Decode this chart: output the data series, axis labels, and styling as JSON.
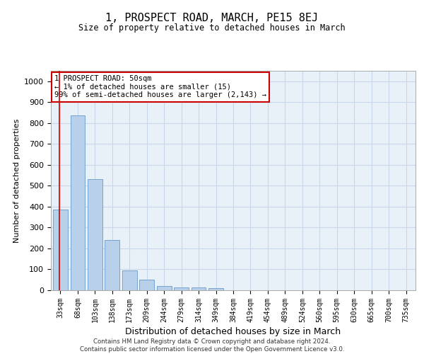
{
  "title": "1, PROSPECT ROAD, MARCH, PE15 8EJ",
  "subtitle": "Size of property relative to detached houses in March",
  "xlabel": "Distribution of detached houses by size in March",
  "ylabel": "Number of detached properties",
  "bar_labels": [
    "33sqm",
    "68sqm",
    "103sqm",
    "138sqm",
    "173sqm",
    "209sqm",
    "244sqm",
    "279sqm",
    "314sqm",
    "349sqm",
    "384sqm",
    "419sqm",
    "454sqm",
    "489sqm",
    "524sqm",
    "560sqm",
    "595sqm",
    "630sqm",
    "665sqm",
    "700sqm",
    "735sqm"
  ],
  "bar_values": [
    385,
    835,
    533,
    242,
    95,
    51,
    22,
    14,
    13,
    10,
    0,
    0,
    0,
    0,
    0,
    0,
    0,
    0,
    0,
    0,
    0
  ],
  "bar_color": "#b8d0ea",
  "bar_edge_color": "#6699cc",
  "grid_color": "#c8d8e8",
  "background_color": "#e8f0f8",
  "ylim": [
    0,
    1050
  ],
  "yticks": [
    0,
    100,
    200,
    300,
    400,
    500,
    600,
    700,
    800,
    900,
    1000
  ],
  "subject_line_color": "#cc0000",
  "annotation_text": "1 PROSPECT ROAD: 50sqm\n← 1% of detached houses are smaller (15)\n99% of semi-detached houses are larger (2,143) →",
  "annotation_box_color": "#cc0000",
  "footer_line1": "Contains HM Land Registry data © Crown copyright and database right 2024.",
  "footer_line2": "Contains public sector information licensed under the Open Government Licence v3.0."
}
